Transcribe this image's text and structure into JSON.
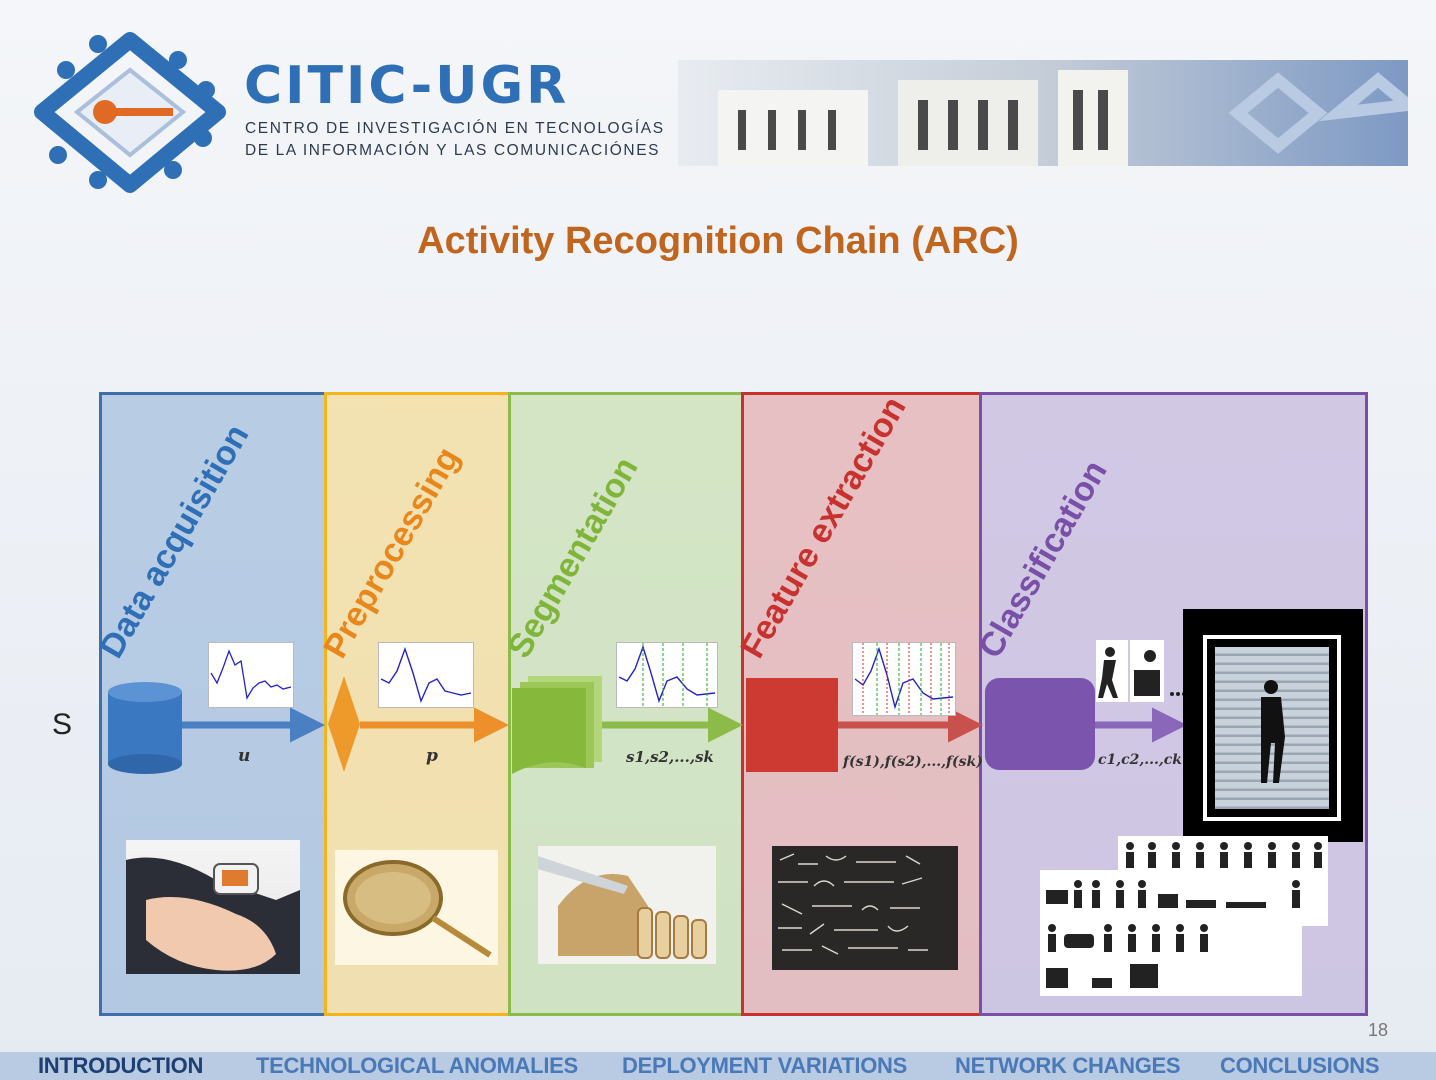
{
  "header": {
    "brand_name": "CITIC-UGR",
    "brand_sub_line1": "CENTRO DE INVESTIGACIÓN EN TECNOLOGÍAS",
    "brand_sub_line2": "DE LA INFORMACIÓN Y LAS COMUNICACIÓNES"
  },
  "slide": {
    "title": "Activity Recognition Chain (ARC)",
    "page_number": "18"
  },
  "diagram": {
    "input_label": "S",
    "stages": [
      {
        "label": "Data acquisition",
        "output": "u",
        "color": "#2f6fb6"
      },
      {
        "label": "Preprocessing",
        "output": "p",
        "color": "#e8871c"
      },
      {
        "label": "Segmentation",
        "output": "s1,s2,...,sk",
        "color": "#7fb53b"
      },
      {
        "label": "Feature extraction",
        "output": "f(s1),f(s2),...,f(sk)",
        "color": "#c8322e"
      },
      {
        "label": "Classification",
        "output": "c1,c2,...,ck",
        "color": "#7a4fa8"
      }
    ]
  },
  "nav": {
    "items": [
      "INTRODUCTION",
      "TECHNOLOGICAL ANOMALIES",
      "DEPLOYMENT VARIATIONS",
      "NETWORK CHANGES",
      "CONCLUSIONS"
    ],
    "active": "INTRODUCTION"
  }
}
